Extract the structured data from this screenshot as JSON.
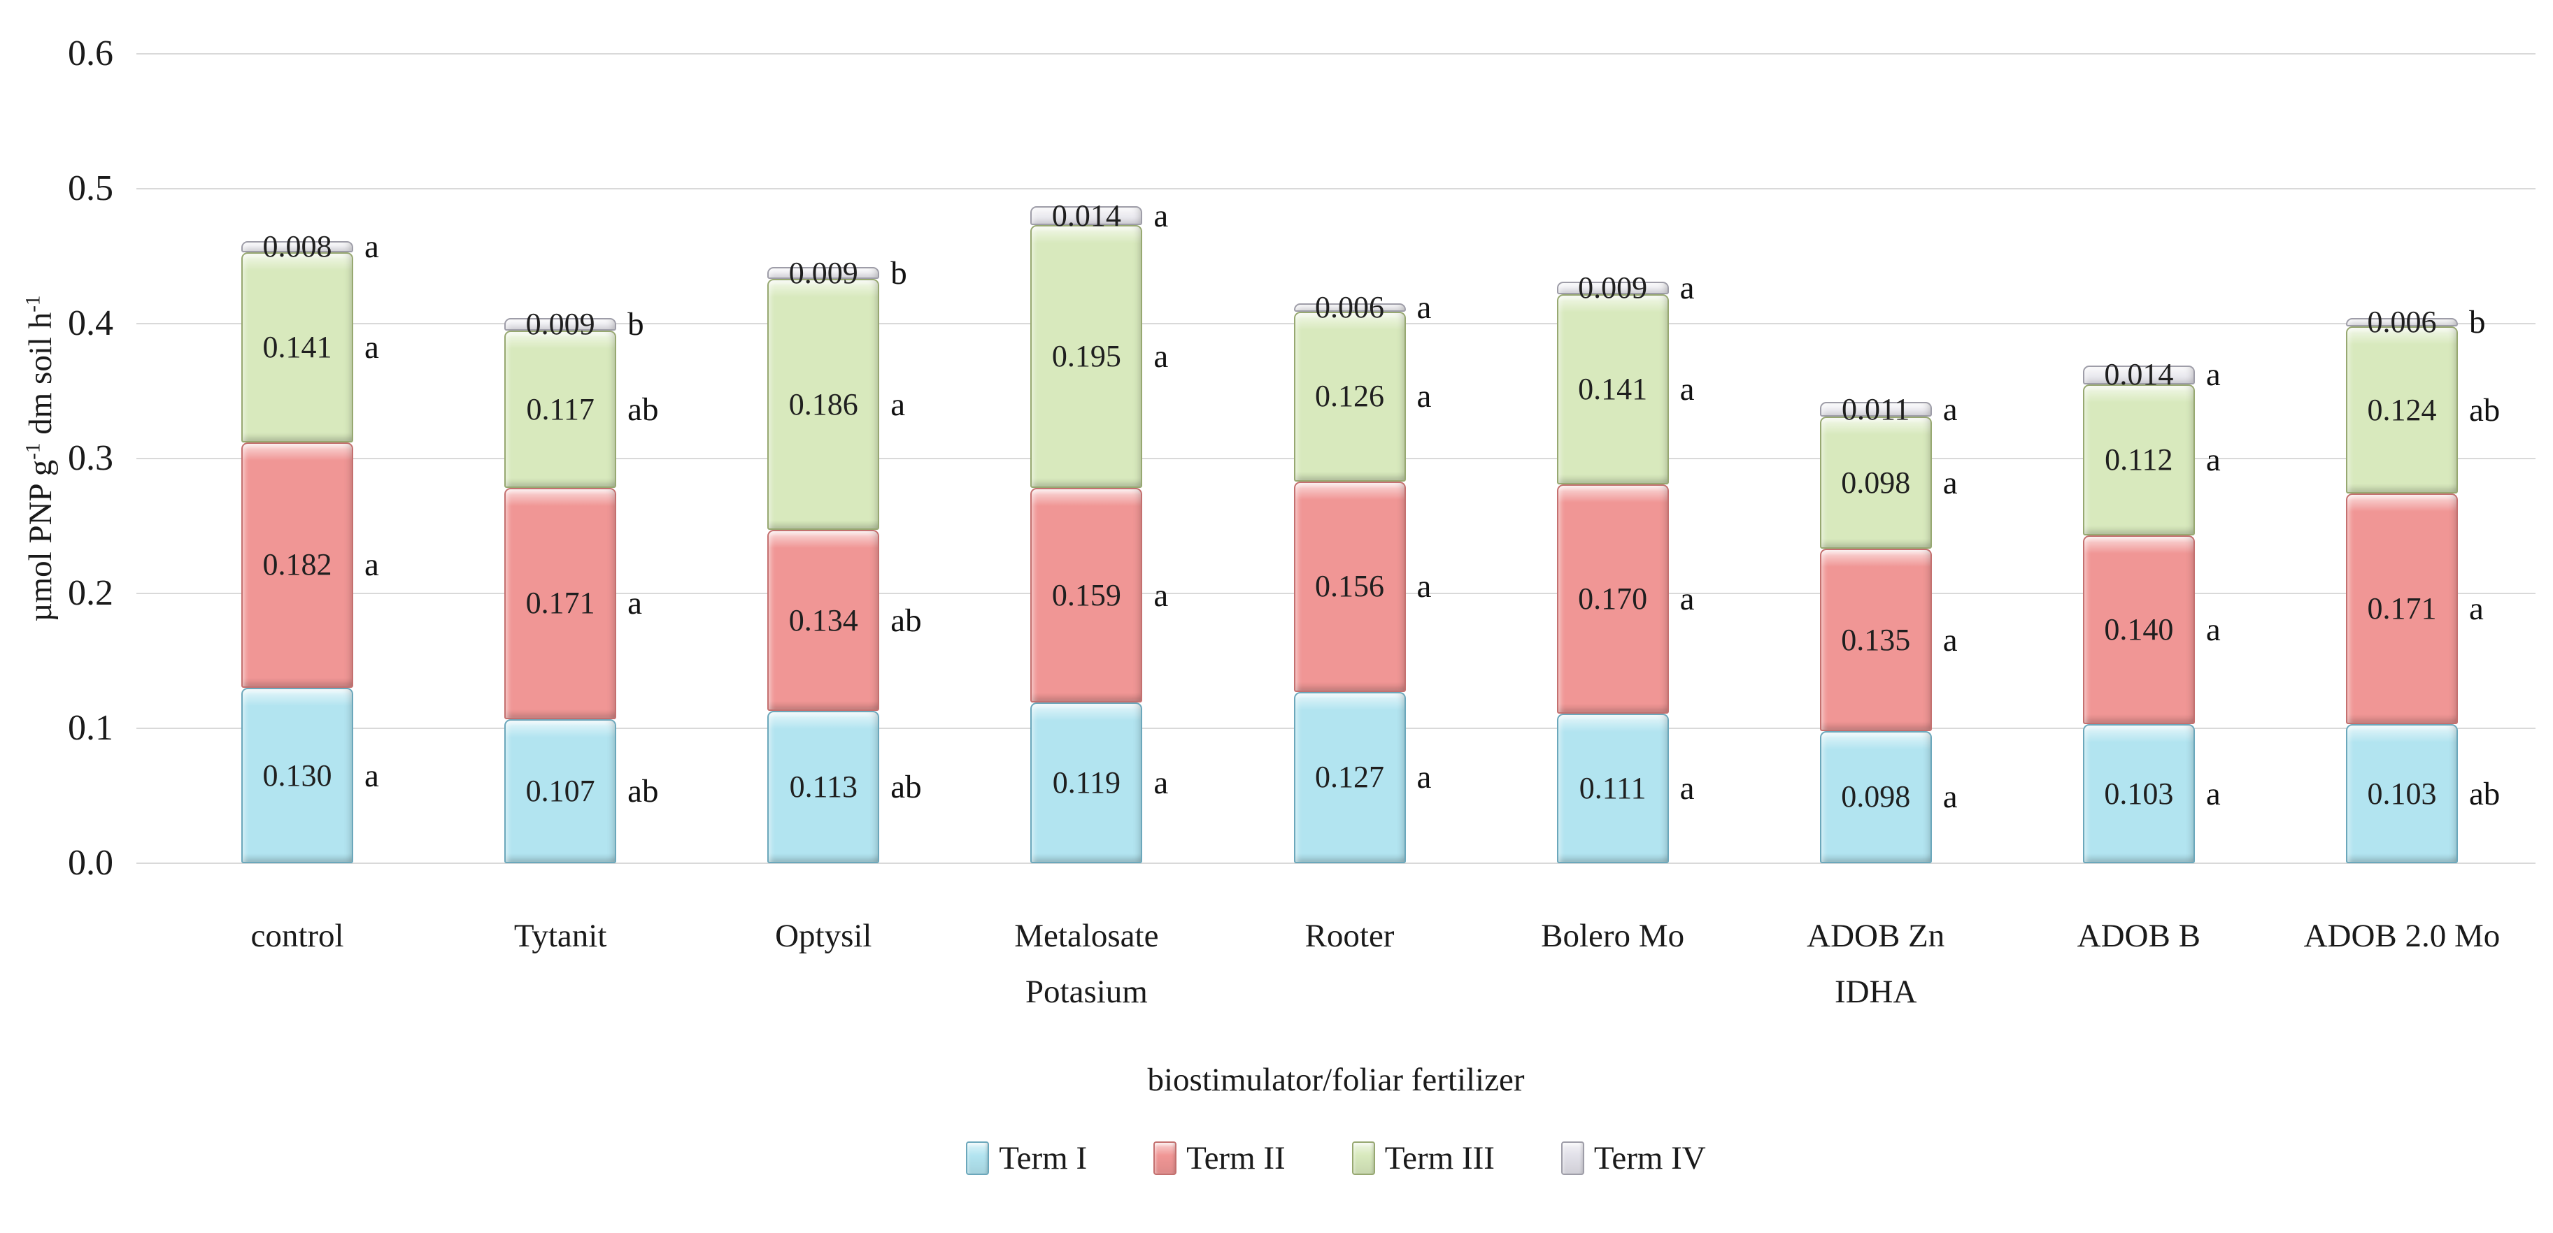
{
  "chart_data": {
    "type": "bar",
    "subtype": "stacked-vertical",
    "title": "",
    "xlabel": "biostimulator/foliar fertilizer",
    "ylabel": "µmol PNP g-1 dm soil h-1",
    "ylabel_parts": [
      "µmol PNP g",
      "-1",
      " dm soil h",
      "-1"
    ],
    "ylim": [
      0,
      0.6
    ],
    "yticks": [
      "0.0",
      "0.1",
      "0.2",
      "0.3",
      "0.4",
      "0.5",
      "0.6"
    ],
    "grid": true,
    "legend_position": "bottom",
    "colors": {
      "gridline": "#d9d9d9",
      "text": "#1a1a1a",
      "background": "#ffffff"
    },
    "categories": [
      "control",
      "Tytanit",
      "Optysil",
      "Metalosate Potasium",
      "Rooter",
      "Bolero Mo",
      "ADOB Zn IDHA",
      "ADOB B",
      "ADOB 2.0 Mo"
    ],
    "series": [
      {
        "name": "Term I",
        "color": "#b2e4f0",
        "border_color": "#6ba7bb",
        "values": [
          0.13,
          0.107,
          0.113,
          0.119,
          0.127,
          0.111,
          0.098,
          0.103,
          0.103
        ],
        "value_labels": [
          "0.130",
          "0.107",
          "0.113",
          "0.119",
          "0.127",
          "0.111",
          "0.098",
          "0.103",
          "0.103"
        ],
        "sig_letters": [
          "a",
          "ab",
          "ab",
          "a",
          "a",
          "a",
          "a",
          "a",
          "ab"
        ]
      },
      {
        "name": "Term II",
        "color": "#f09695",
        "border_color": "#c4706f",
        "values": [
          0.182,
          0.171,
          0.134,
          0.159,
          0.156,
          0.17,
          0.135,
          0.14,
          0.171
        ],
        "value_labels": [
          "0.182",
          "0.171",
          "0.134",
          "0.159",
          "0.156",
          "0.170",
          "0.135",
          "0.140",
          "0.171"
        ],
        "sig_letters": [
          "a",
          "a",
          "ab",
          "a",
          "a",
          "a",
          "a",
          "a",
          "a"
        ]
      },
      {
        "name": "Term III",
        "color": "#d8e9bd",
        "border_color": "#97a871",
        "values": [
          0.141,
          0.117,
          0.186,
          0.195,
          0.126,
          0.141,
          0.098,
          0.112,
          0.124
        ],
        "value_labels": [
          "0.141",
          "0.117",
          "0.186",
          "0.195",
          "0.126",
          "0.141",
          "0.098",
          "0.112",
          "0.124"
        ],
        "sig_letters": [
          "a",
          "ab",
          "a",
          "a",
          "a",
          "a",
          "a",
          "a",
          "ab"
        ]
      },
      {
        "name": "Term IV",
        "color": "#e2e1e9",
        "border_color": "#9e9da8",
        "values": [
          0.008,
          0.009,
          0.009,
          0.014,
          0.006,
          0.009,
          0.011,
          0.014,
          0.006
        ],
        "value_labels": [
          "0.008",
          "0.009",
          "0.009",
          "0.014",
          "0.006",
          "0.009",
          "0.011",
          "0.014",
          "0.006"
        ],
        "sig_letters": [
          "a",
          "b",
          "b",
          "a",
          "a",
          "a",
          "a",
          "a",
          "b"
        ]
      }
    ]
  }
}
